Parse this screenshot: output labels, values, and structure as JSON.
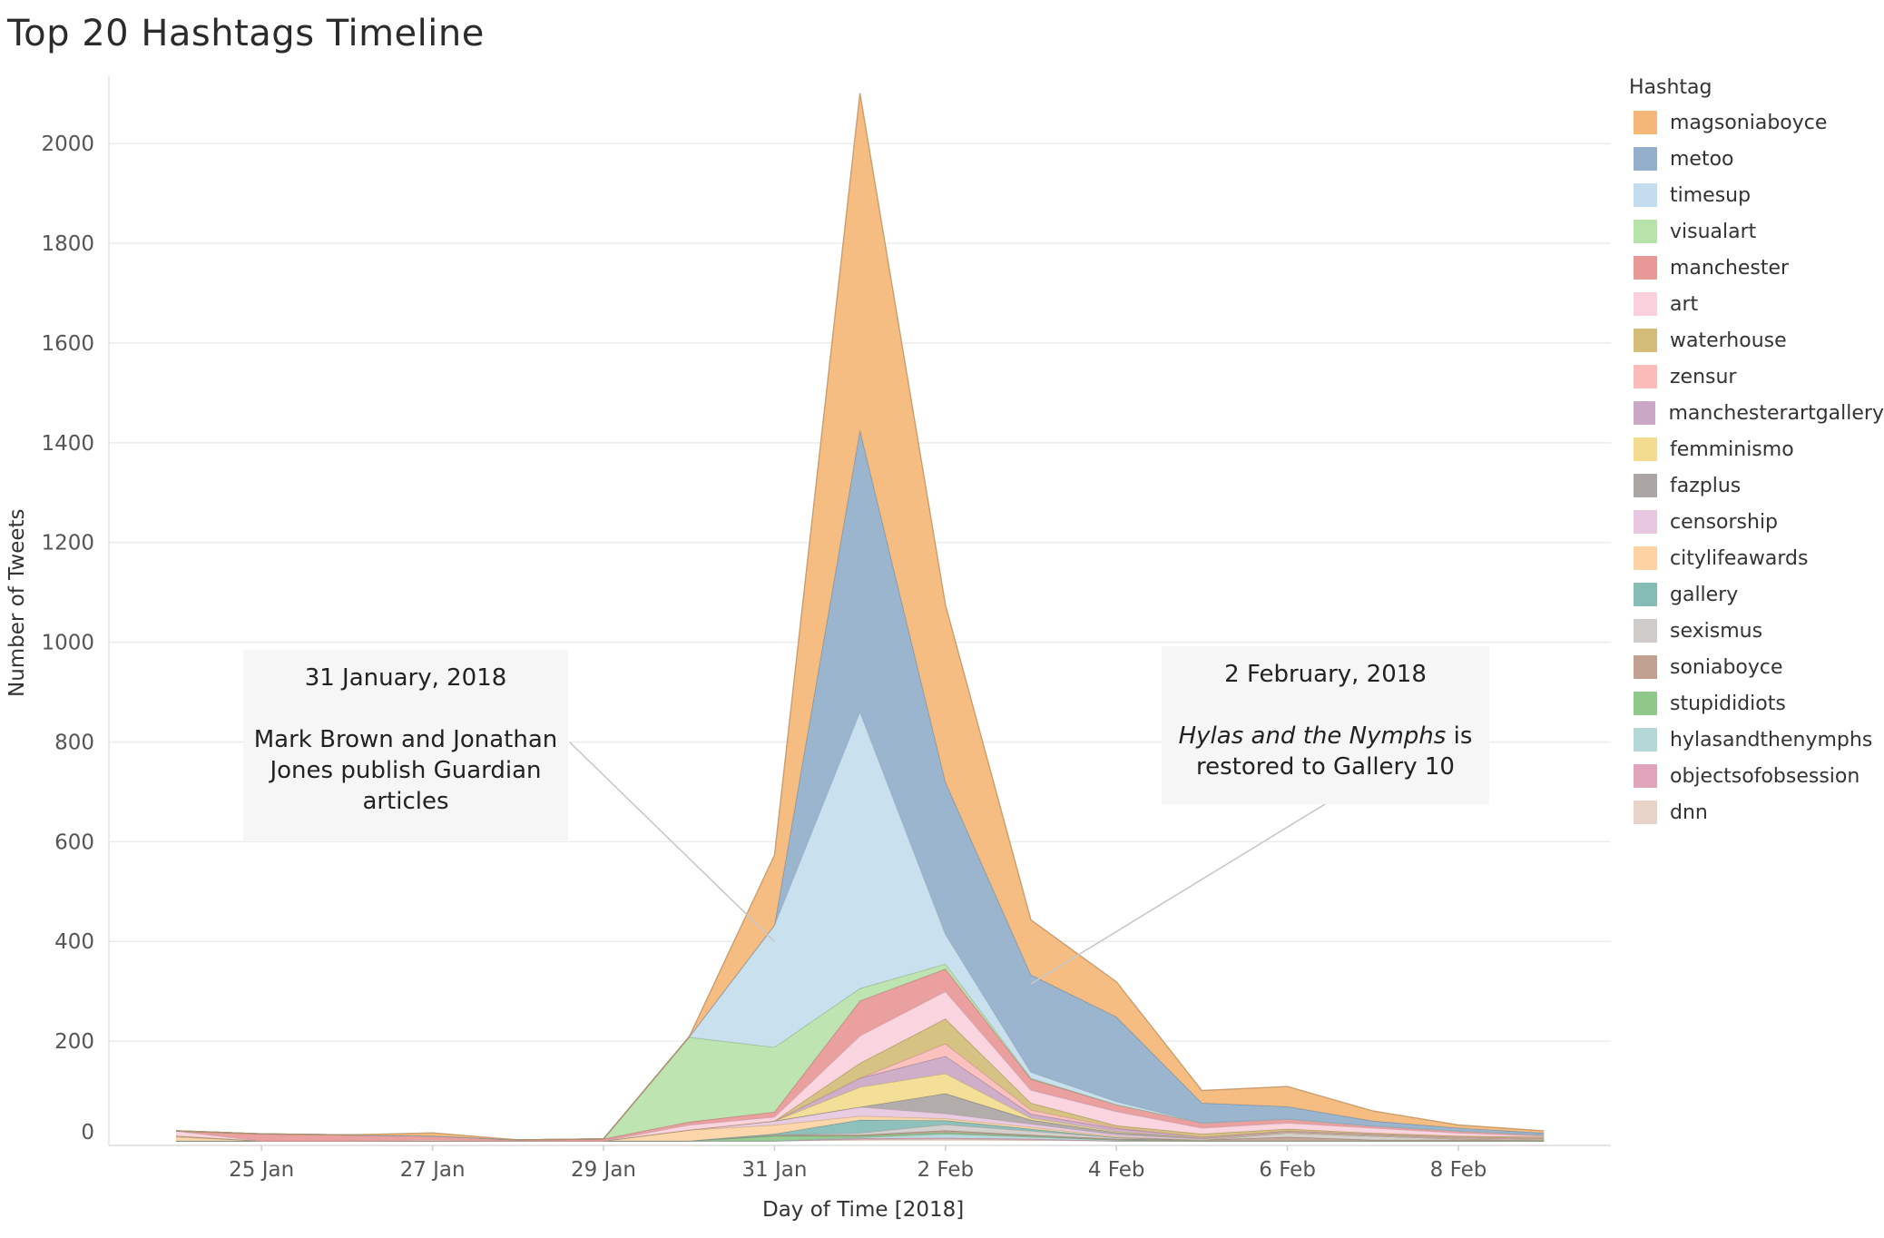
{
  "title": "Top 20 Hashtags Timeline",
  "legend_title": "Hashtag",
  "chart_data": {
    "type": "area",
    "stacked": true,
    "title": "Top 20 Hashtags Timeline",
    "xlabel": "Day of Time [2018]",
    "ylabel": "Number of Tweets",
    "ylim": [
      0,
      2100
    ],
    "yticks": [
      0,
      200,
      400,
      600,
      800,
      1000,
      1200,
      1400,
      1600,
      1800,
      2000
    ],
    "x": [
      "24 Jan",
      "25 Jan",
      "26 Jan",
      "27 Jan",
      "28 Jan",
      "29 Jan",
      "30 Jan",
      "31 Jan",
      "1 Feb",
      "2 Feb",
      "3 Feb",
      "4 Feb",
      "5 Feb",
      "6 Feb",
      "7 Feb",
      "8 Feb",
      "9 Feb"
    ],
    "xtick_labels": [
      "25 Jan",
      "27 Jan",
      "29 Jan",
      "31 Jan",
      "2 Feb",
      "4 Feb",
      "6 Feb",
      "8 Feb"
    ],
    "xtick_indices": [
      1,
      3,
      5,
      7,
      9,
      11,
      13,
      15
    ],
    "series": [
      {
        "name": "dnn",
        "color": "#e8d3c8",
        "values": [
          0,
          0,
          0,
          0,
          0,
          0,
          0,
          0,
          3,
          4,
          2,
          0,
          0,
          0,
          0,
          0,
          0
        ]
      },
      {
        "name": "objectsofobsession",
        "color": "#e1a5bb",
        "values": [
          0,
          0,
          0,
          0,
          0,
          0,
          0,
          0,
          2,
          2,
          2,
          0,
          0,
          0,
          0,
          0,
          0
        ]
      },
      {
        "name": "hylasandthenymphs",
        "color": "#b4d7d8",
        "values": [
          0,
          0,
          0,
          0,
          0,
          0,
          0,
          0,
          2,
          8,
          4,
          2,
          0,
          0,
          0,
          0,
          0
        ]
      },
      {
        "name": "stupididiots",
        "color": "#90c88a",
        "values": [
          0,
          0,
          0,
          0,
          0,
          0,
          0,
          10,
          3,
          3,
          2,
          0,
          0,
          0,
          0,
          0,
          0
        ]
      },
      {
        "name": "soniaboyce",
        "color": "#c0a090",
        "values": [
          0,
          0,
          0,
          0,
          0,
          0,
          0,
          2,
          2,
          4,
          2,
          2,
          2,
          8,
          2,
          2,
          2
        ]
      },
      {
        "name": "sexismus",
        "color": "#d0ccca",
        "values": [
          0,
          0,
          0,
          0,
          0,
          0,
          0,
          0,
          4,
          12,
          8,
          3,
          0,
          8,
          8,
          2,
          0
        ]
      },
      {
        "name": "gallery",
        "color": "#86bcb6",
        "values": [
          0,
          0,
          0,
          0,
          0,
          0,
          0,
          2,
          26,
          8,
          4,
          0,
          0,
          0,
          0,
          0,
          0
        ]
      },
      {
        "name": "citylifeawards",
        "color": "#fdd3a4",
        "values": [
          8,
          0,
          0,
          0,
          0,
          0,
          22,
          18,
          8,
          4,
          4,
          2,
          0,
          0,
          0,
          0,
          0
        ]
      },
      {
        "name": "censorship",
        "color": "#e7c8e0",
        "values": [
          2,
          0,
          0,
          0,
          0,
          0,
          0,
          8,
          18,
          10,
          6,
          4,
          2,
          2,
          2,
          2,
          2
        ]
      },
      {
        "name": "fazplus",
        "color": "#aba6a3",
        "values": [
          0,
          0,
          0,
          0,
          0,
          0,
          0,
          0,
          0,
          40,
          8,
          4,
          2,
          0,
          0,
          0,
          0
        ]
      },
      {
        "name": "femminismo",
        "color": "#f3dc8f",
        "values": [
          0,
          0,
          0,
          0,
          0,
          0,
          0,
          0,
          40,
          40,
          4,
          2,
          0,
          0,
          0,
          0,
          0
        ]
      },
      {
        "name": "manchesterartgallery",
        "color": "#cba7c6",
        "values": [
          0,
          0,
          0,
          0,
          0,
          0,
          0,
          0,
          18,
          35,
          8,
          6,
          2,
          2,
          2,
          2,
          2
        ]
      },
      {
        "name": "zensur",
        "color": "#fbbcb9",
        "values": [
          0,
          0,
          0,
          0,
          0,
          0,
          0,
          0,
          0,
          25,
          8,
          2,
          0,
          0,
          0,
          0,
          0
        ]
      },
      {
        "name": "waterhouse",
        "color": "#d3bd78",
        "values": [
          0,
          0,
          0,
          0,
          0,
          0,
          0,
          0,
          30,
          50,
          14,
          4,
          6,
          4,
          2,
          2,
          2
        ]
      },
      {
        "name": "art",
        "color": "#fad0dc",
        "values": [
          10,
          0,
          0,
          2,
          0,
          0,
          10,
          8,
          55,
          55,
          26,
          28,
          12,
          12,
          10,
          6,
          2
        ]
      },
      {
        "name": "manchester",
        "color": "#e99898",
        "values": [
          0,
          14,
          12,
          8,
          2,
          4,
          6,
          10,
          70,
          45,
          22,
          14,
          10,
          8,
          4,
          4,
          2
        ]
      },
      {
        "name": "visualart",
        "color": "#b7e2aa",
        "values": [
          0,
          0,
          0,
          0,
          0,
          0,
          170,
          130,
          25,
          10,
          2,
          0,
          0,
          0,
          0,
          0,
          0
        ]
      },
      {
        "name": "timesup",
        "color": "#c4ddee",
        "values": [
          0,
          0,
          0,
          0,
          0,
          0,
          0,
          245,
          555,
          60,
          12,
          6,
          0,
          0,
          0,
          0,
          0
        ]
      },
      {
        "name": "metoo",
        "color": "#93afcb",
        "values": [
          0,
          0,
          0,
          0,
          0,
          0,
          0,
          0,
          565,
          305,
          195,
          170,
          40,
          25,
          10,
          6,
          4
        ]
      },
      {
        "name": "magsoniaboyce",
        "color": "#f4b777",
        "values": [
          0,
          0,
          0,
          6,
          0,
          0,
          0,
          140,
          675,
          355,
          110,
          70,
          25,
          40,
          20,
          6,
          4
        ]
      }
    ],
    "legend_order": [
      "magsoniaboyce",
      "metoo",
      "timesup",
      "visualart",
      "manchester",
      "art",
      "waterhouse",
      "zensur",
      "manchesterartgallery",
      "femminismo",
      "fazplus",
      "censorship",
      "citylifeawards",
      "gallery",
      "sexismus",
      "soniaboyce",
      "stupididiots",
      "hylasandthenymphs",
      "objectsofobsession",
      "dnn"
    ],
    "annotations": [
      {
        "heading": "31 January, 2018",
        "body": "Mark Brown and Jonathan Jones publish Guardian articles",
        "x": "31 Jan",
        "y": 400
      },
      {
        "heading": "2 February, 2018",
        "body_italic": "Hylas and the Nymphs",
        "body_rest": " is restored to Gallery 10",
        "x": "3 Feb",
        "y": 315
      }
    ]
  }
}
